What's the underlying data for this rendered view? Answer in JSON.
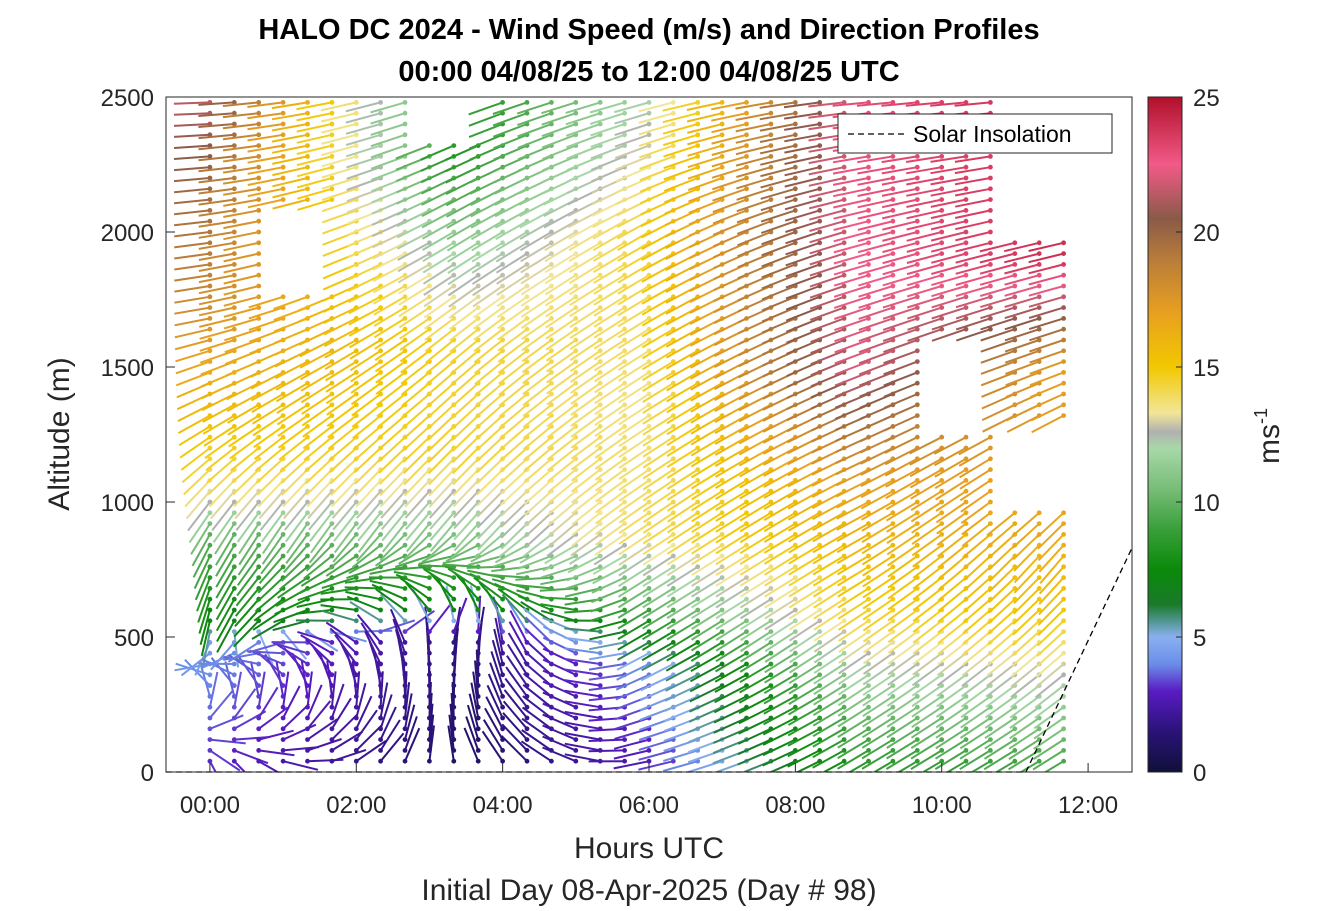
{
  "chart_data": {
    "type": "scatter",
    "title": "HALO DC 2024 - Wind Speed (m/s) and Direction Profiles",
    "subtitle": "00:00 04/08/25 to 12:00 04/08/25  UTC",
    "xlabel": "Hours UTC",
    "xlabel2": "Initial Day 08-Apr-2025 (Day # 98)",
    "ylabel": "Altitude (m)",
    "colorbar_label": "ms",
    "colorbar_label_exp": "-1",
    "xlim": [
      -0.6,
      12.6
    ],
    "ylim": [
      0,
      2500
    ],
    "x_ticks": [
      0,
      2,
      4,
      6,
      8,
      10,
      12
    ],
    "x_tick_labels": [
      "00:00",
      "02:00",
      "04:00",
      "06:00",
      "08:00",
      "10:00",
      "12:00"
    ],
    "y_ticks": [
      0,
      500,
      1000,
      1500,
      2000,
      2500
    ],
    "y_tick_labels": [
      "0",
      "500",
      "1000",
      "1500",
      "2000",
      "2500"
    ],
    "colorbar_range": [
      0,
      25
    ],
    "colorbar_ticks": [
      0,
      5,
      10,
      15,
      20,
      25
    ],
    "colorbar_tick_labels": [
      "0",
      "5",
      "10",
      "15",
      "20",
      "25"
    ],
    "legend": {
      "label": "Solar Insolation",
      "position": "top-right"
    },
    "grid": false,
    "profile_interval_hours": 0.3333,
    "first_profile_hour": 0.0,
    "last_profile_hour": 11.75,
    "level_interval_m": 40,
    "lowest_level_m": 40,
    "solar_insolation_line": [
      [
        -0.6,
        0
      ],
      [
        11.15,
        0
      ],
      [
        12.6,
        830
      ]
    ],
    "colorbar_stops": [
      {
        "v": 0,
        "c": "#10103a"
      },
      {
        "v": 1.5,
        "c": "#2a1378"
      },
      {
        "v": 3,
        "c": "#5a1bc4"
      },
      {
        "v": 4,
        "c": "#6a8ee8"
      },
      {
        "v": 5,
        "c": "#8ab0f0"
      },
      {
        "v": 5.5,
        "c": "#5a9aa0"
      },
      {
        "v": 6.2,
        "c": "#1a7a2a"
      },
      {
        "v": 7.5,
        "c": "#0a8a0a"
      },
      {
        "v": 9,
        "c": "#3aa03a"
      },
      {
        "v": 10.5,
        "c": "#78bd78"
      },
      {
        "v": 12,
        "c": "#a8d8a8"
      },
      {
        "v": 12.6,
        "c": "#b0b0b0"
      },
      {
        "v": 13.3,
        "c": "#f2e698"
      },
      {
        "v": 15,
        "c": "#f2c800"
      },
      {
        "v": 17,
        "c": "#e8a020"
      },
      {
        "v": 19,
        "c": "#b87c3a"
      },
      {
        "v": 20.5,
        "c": "#8a5a48"
      },
      {
        "v": 22.5,
        "c": "#f25a88"
      },
      {
        "v": 25,
        "c": "#b0102a"
      }
    ],
    "speed_profile_points": [
      {
        "hour": 0.0,
        "speeds": [
          [
            0,
            3
          ],
          [
            500,
            4.5
          ],
          [
            550,
            7
          ],
          [
            900,
            10
          ],
          [
            1000,
            12.6
          ],
          [
            1100,
            14
          ],
          [
            1400,
            16
          ],
          [
            1800,
            18.5
          ],
          [
            2200,
            20
          ],
          [
            2500,
            21.5
          ]
        ]
      },
      {
        "hour": 3.5,
        "speeds": [
          [
            0,
            1
          ],
          [
            500,
            1.5
          ],
          [
            600,
            7
          ],
          [
            900,
            11
          ],
          [
            1200,
            14.5
          ],
          [
            1600,
            14.5
          ],
          [
            2000,
            11
          ],
          [
            2300,
            8
          ],
          [
            2500,
            8
          ]
        ]
      },
      {
        "hour": 6.0,
        "speeds": [
          [
            0,
            2.5
          ],
          [
            400,
            4
          ],
          [
            600,
            9
          ],
          [
            900,
            14
          ],
          [
            1400,
            13.5
          ],
          [
            2000,
            14.5
          ],
          [
            2500,
            12
          ]
        ]
      },
      {
        "hour": 9.0,
        "speeds": [
          [
            0,
            8
          ],
          [
            300,
            11
          ],
          [
            600,
            14.5
          ],
          [
            1100,
            17
          ],
          [
            1500,
            22
          ],
          [
            1900,
            22.5
          ],
          [
            2500,
            23
          ]
        ]
      },
      {
        "hour": 11.75,
        "speeds": [
          [
            0,
            9
          ],
          [
            300,
            12
          ],
          [
            600,
            15
          ],
          [
            1000,
            17
          ],
          [
            1500,
            17
          ],
          [
            1900,
            24
          ],
          [
            2500,
            24
          ]
        ]
      }
    ],
    "direction_profile_points": [
      {
        "hour": 0.0,
        "dir_deg": [
          [
            0,
            0
          ],
          [
            500,
            350
          ],
          [
            900,
            330
          ],
          [
            1300,
            300
          ],
          [
            1700,
            280
          ],
          [
            2500,
            272
          ]
        ]
      },
      {
        "hour": 3.5,
        "dir_deg": [
          [
            0,
            200
          ],
          [
            500,
            160
          ],
          [
            900,
            320
          ],
          [
            1600,
            310
          ],
          [
            2500,
            290
          ]
        ]
      },
      {
        "hour": 6.0,
        "dir_deg": [
          [
            0,
            280
          ],
          [
            500,
            300
          ],
          [
            1000,
            305
          ],
          [
            2000,
            300
          ],
          [
            2500,
            285
          ]
        ]
      },
      {
        "hour": 9.0,
        "dir_deg": [
          [
            0,
            300
          ],
          [
            500,
            305
          ],
          [
            1200,
            295
          ],
          [
            2000,
            285
          ],
          [
            2500,
            275
          ]
        ]
      },
      {
        "hour": 11.75,
        "dir_deg": [
          [
            0,
            300
          ],
          [
            800,
            320
          ],
          [
            1500,
            290
          ],
          [
            2500,
            275
          ]
        ]
      }
    ],
    "missing_regions": [
      {
        "h0": 0.9,
        "h1": 1.9,
        "z0": 1800,
        "z1": 2100
      },
      {
        "h0": 2.7,
        "h1": 3.7,
        "z0": 2350,
        "z1": 2500
      },
      {
        "h0": 9.9,
        "h1": 10.8,
        "z0": 1280,
        "z1": 1600
      },
      {
        "h0": 10.8,
        "h1": 12.0,
        "z0": 2000,
        "z1": 2500
      },
      {
        "h0": 10.8,
        "h1": 12.0,
        "z0": 1000,
        "z1": 1300
      }
    ]
  }
}
